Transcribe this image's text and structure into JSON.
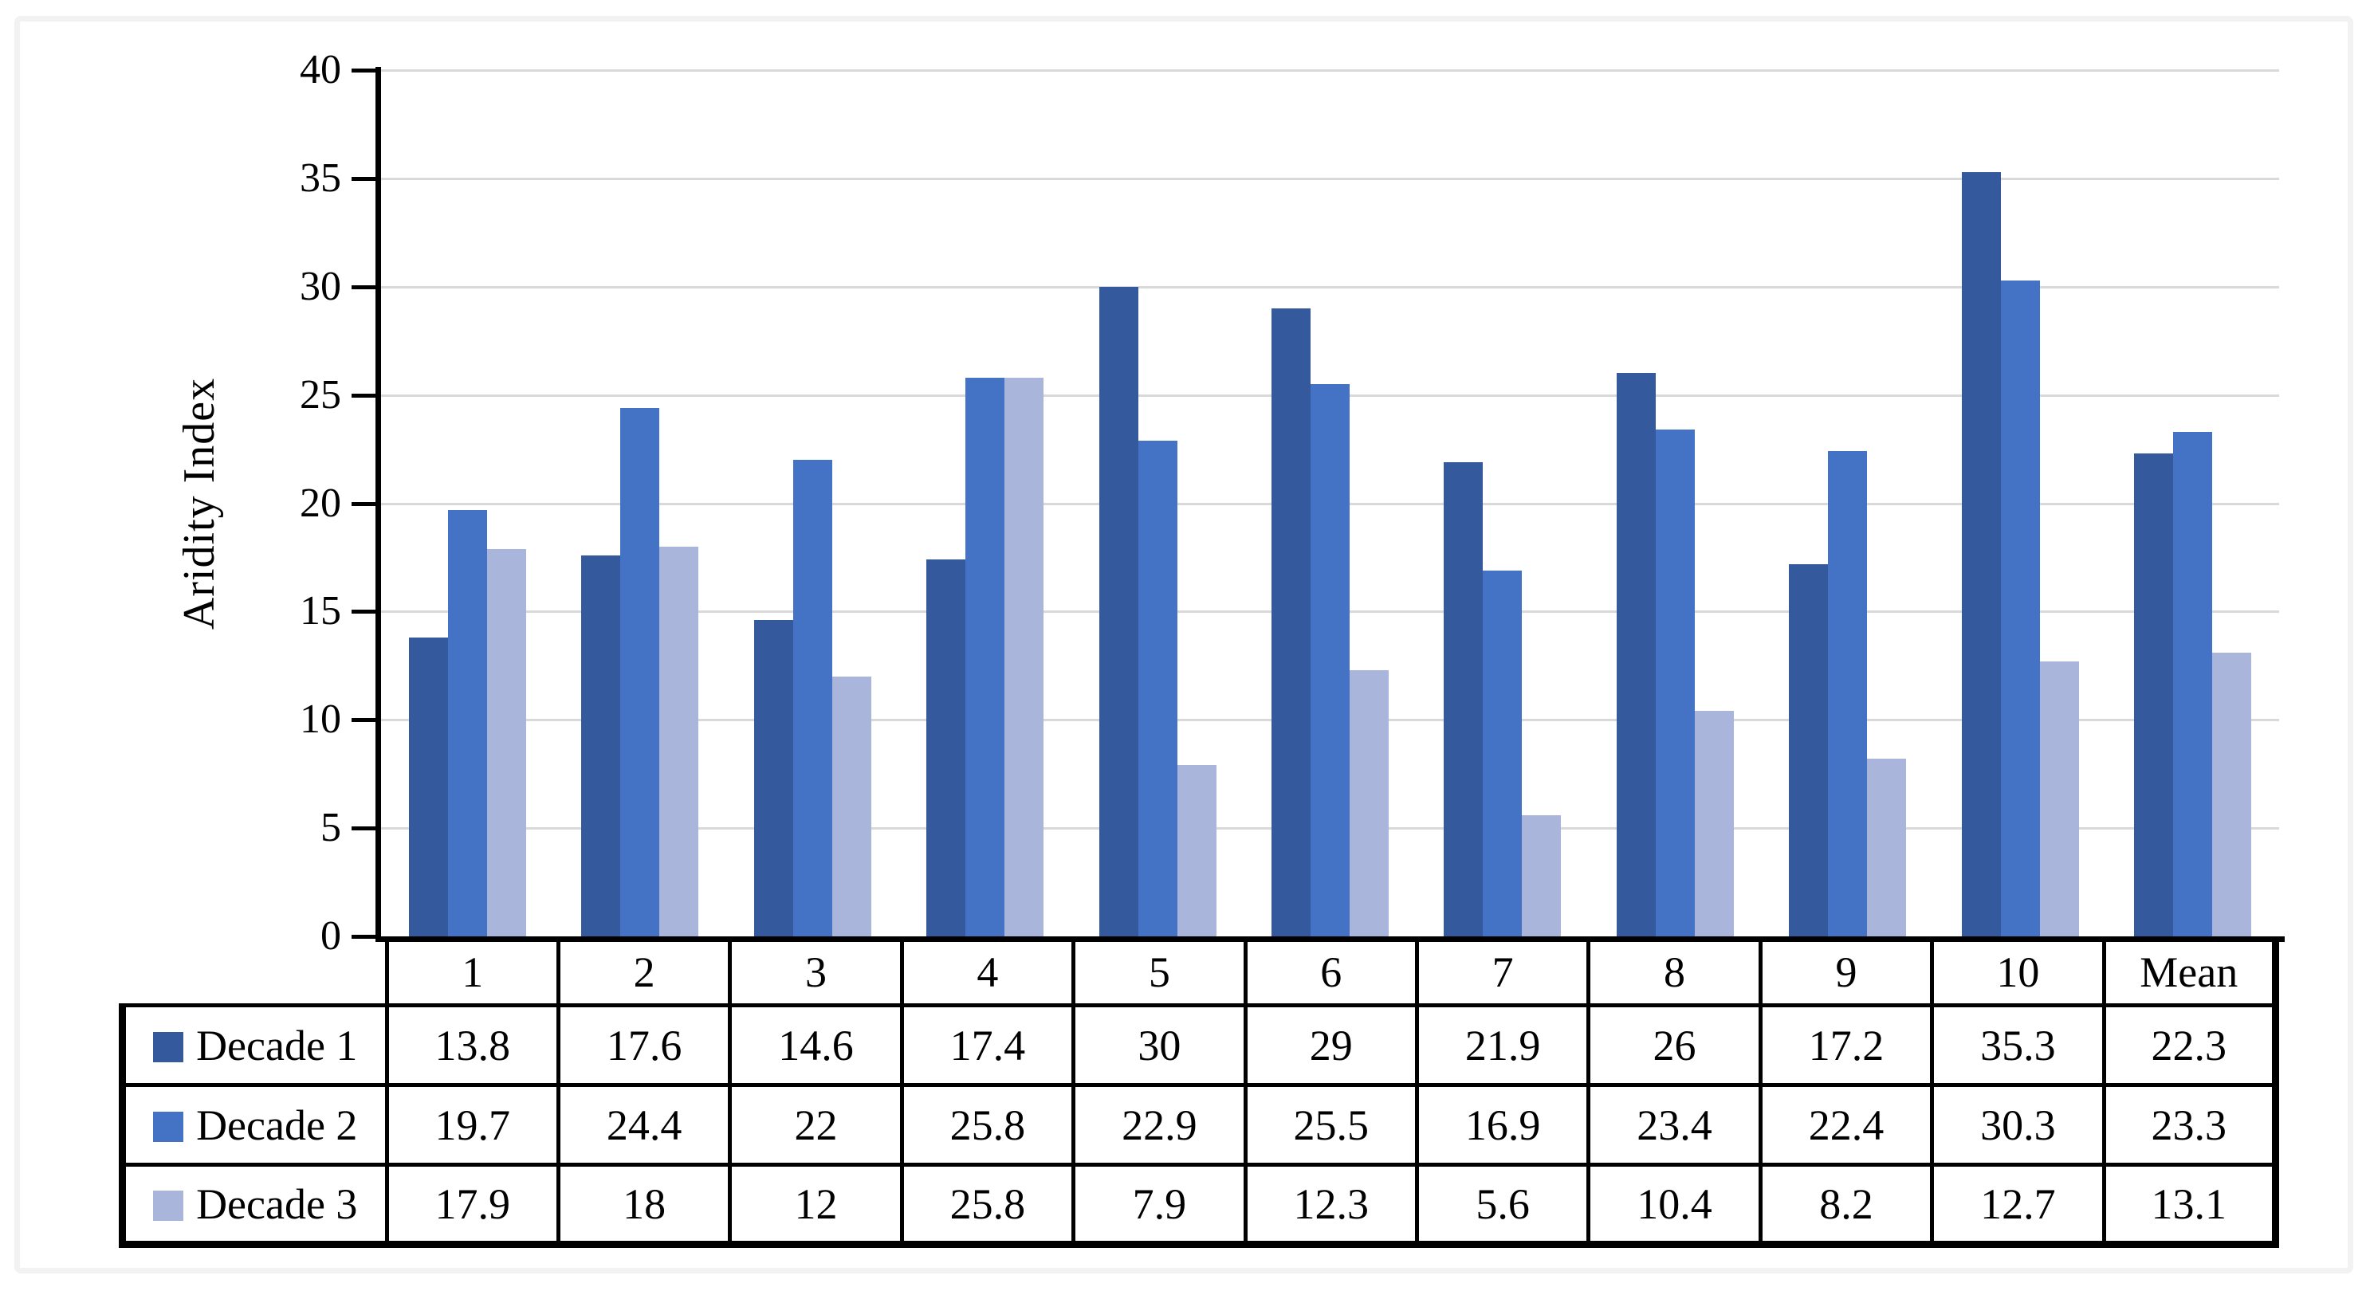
{
  "figure": {
    "background": "#FFFFFF",
    "frame_border_color": "#F2F2F2",
    "gridline_color": "#D9D9D9",
    "axis_color": "#000000",
    "table_border_color": "#000000"
  },
  "chart_data": {
    "type": "bar",
    "title": "",
    "xlabel": "",
    "ylabel": "Aridity Index",
    "ylim": [
      0,
      40
    ],
    "yticks": [
      0,
      5,
      10,
      15,
      20,
      25,
      30,
      35,
      40
    ],
    "grid": true,
    "legend_position": "data-table-left",
    "categories": [
      "1",
      "2",
      "3",
      "4",
      "5",
      "6",
      "7",
      "8",
      "9",
      "10",
      "Mean"
    ],
    "series": [
      {
        "name": "Decade 1",
        "color": "#34599D",
        "values": [
          13.8,
          17.6,
          14.6,
          17.4,
          30,
          29,
          21.9,
          26,
          17.2,
          35.3,
          22.3
        ]
      },
      {
        "name": "Decade 2",
        "color": "#4472C4",
        "values": [
          19.7,
          24.4,
          22,
          25.8,
          22.9,
          25.5,
          16.9,
          23.4,
          22.4,
          30.3,
          23.3
        ]
      },
      {
        "name": "Decade 3",
        "color": "#A9B5DB",
        "values": [
          17.9,
          18,
          12,
          25.8,
          7.9,
          12.3,
          5.6,
          10.4,
          8.2,
          12.7,
          13.1
        ]
      }
    ]
  }
}
